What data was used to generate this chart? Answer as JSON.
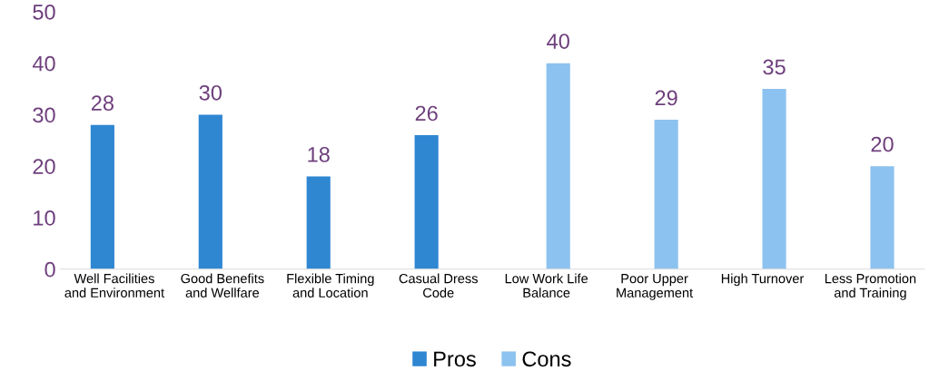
{
  "chart_data": {
    "type": "bar",
    "categories": [
      "Well Facilities and Environment",
      "Good Benefits and Wellfare",
      "Flexible Timing and Location",
      "Casual Dress Code",
      "Low Work Life Balance",
      "Poor Upper Management",
      "High Turnover",
      "Less Promotion and Training"
    ],
    "series": [
      {
        "name": "Pros",
        "color": "#2f87d2",
        "values": [
          28,
          30,
          18,
          26,
          null,
          null,
          null,
          null
        ]
      },
      {
        "name": "Cons",
        "color": "#8cc2ef",
        "values": [
          null,
          null,
          null,
          null,
          40,
          29,
          35,
          20
        ]
      }
    ],
    "ylim": [
      0,
      50
    ],
    "yticks": [
      0,
      10,
      20,
      30,
      40,
      50
    ],
    "grid": false,
    "legend": "bottom",
    "data_labels": true
  }
}
